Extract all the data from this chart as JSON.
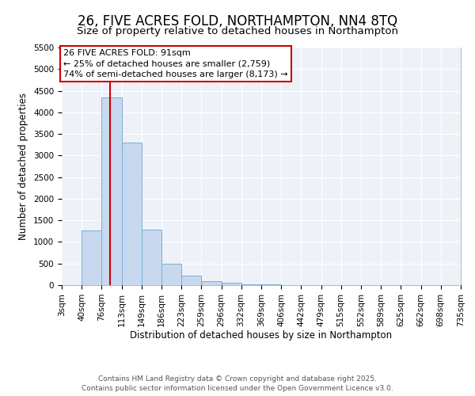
{
  "title": "26, FIVE ACRES FOLD, NORTHAMPTON, NN4 8TQ",
  "subtitle": "Size of property relative to detached houses in Northampton",
  "xlabel": "Distribution of detached houses by size in Northampton",
  "ylabel": "Number of detached properties",
  "footer_line1": "Contains HM Land Registry data © Crown copyright and database right 2025.",
  "footer_line2": "Contains public sector information licensed under the Open Government Licence v3.0.",
  "bin_labels": [
    "3sqm",
    "40sqm",
    "76sqm",
    "113sqm",
    "149sqm",
    "186sqm",
    "223sqm",
    "259sqm",
    "296sqm",
    "332sqm",
    "369sqm",
    "406sqm",
    "442sqm",
    "479sqm",
    "515sqm",
    "552sqm",
    "589sqm",
    "625sqm",
    "662sqm",
    "698sqm",
    "735sqm"
  ],
  "bin_edges": [
    3,
    40,
    76,
    113,
    149,
    186,
    223,
    259,
    296,
    332,
    369,
    406,
    442,
    479,
    515,
    552,
    589,
    625,
    662,
    698,
    735
  ],
  "bar_heights": [
    0,
    1260,
    4350,
    3300,
    1280,
    500,
    220,
    95,
    50,
    25,
    10,
    5,
    2,
    1,
    0,
    0,
    0,
    0,
    0,
    0
  ],
  "bar_color": "#c8d9ef",
  "bar_edge_color": "#7aaed6",
  "property_size": 91,
  "vline_color": "#cc0000",
  "ylim": [
    0,
    5500
  ],
  "yticks": [
    0,
    500,
    1000,
    1500,
    2000,
    2500,
    3000,
    3500,
    4000,
    4500,
    5000,
    5500
  ],
  "annotation_title": "26 FIVE ACRES FOLD: 91sqm",
  "annotation_line2": "← 25% of detached houses are smaller (2,759)",
  "annotation_line3": "74% of semi-detached houses are larger (8,173) →",
  "annotation_box_color": "#ffffff",
  "annotation_border_color": "#cc0000",
  "background_color": "#ffffff",
  "plot_bg_color": "#eef2f8",
  "grid_color": "#ffffff",
  "title_fontsize": 12,
  "subtitle_fontsize": 9.5,
  "axis_label_fontsize": 8.5,
  "tick_fontsize": 7.5,
  "annotation_fontsize": 8,
  "footer_fontsize": 6.5
}
